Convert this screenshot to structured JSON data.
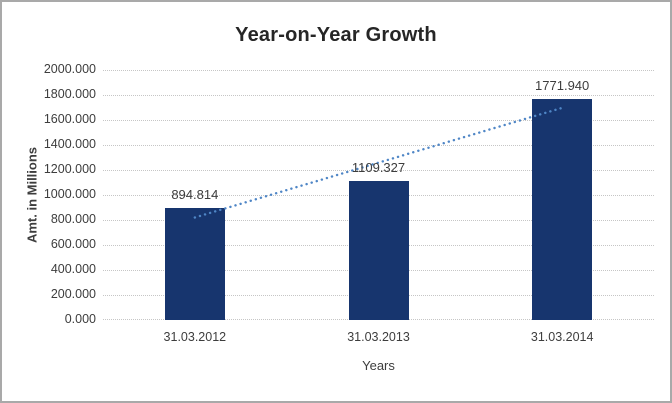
{
  "chart_data": {
    "type": "bar",
    "title": "Year-on-Year Growth",
    "xlabel": "Years",
    "ylabel": "Amt. in Millions",
    "categories": [
      "31.03.2012",
      "31.03.2013",
      "31.03.2014"
    ],
    "values": [
      894.814,
      1109.327,
      1771.94
    ],
    "data_labels": [
      "894.814",
      "1109.327",
      "1771.940"
    ],
    "y_ticks": [
      "0.000",
      "200.000",
      "400.000",
      "600.000",
      "800.000",
      "1000.000",
      "1200.000",
      "1400.000",
      "1600.000",
      "1800.000",
      "2000.000"
    ],
    "ylim": [
      0,
      2000
    ],
    "grid": true,
    "legend": "none",
    "trendline": {
      "type": "linear",
      "style": "dotted",
      "color": "#4F86C6"
    },
    "colors": {
      "bar": "#17356E",
      "gridline": "#C6C6C6",
      "text": "#3D3D3D",
      "title": "#262626",
      "frame_border": "#A9A9A9",
      "background": "#FFFFFF"
    }
  }
}
